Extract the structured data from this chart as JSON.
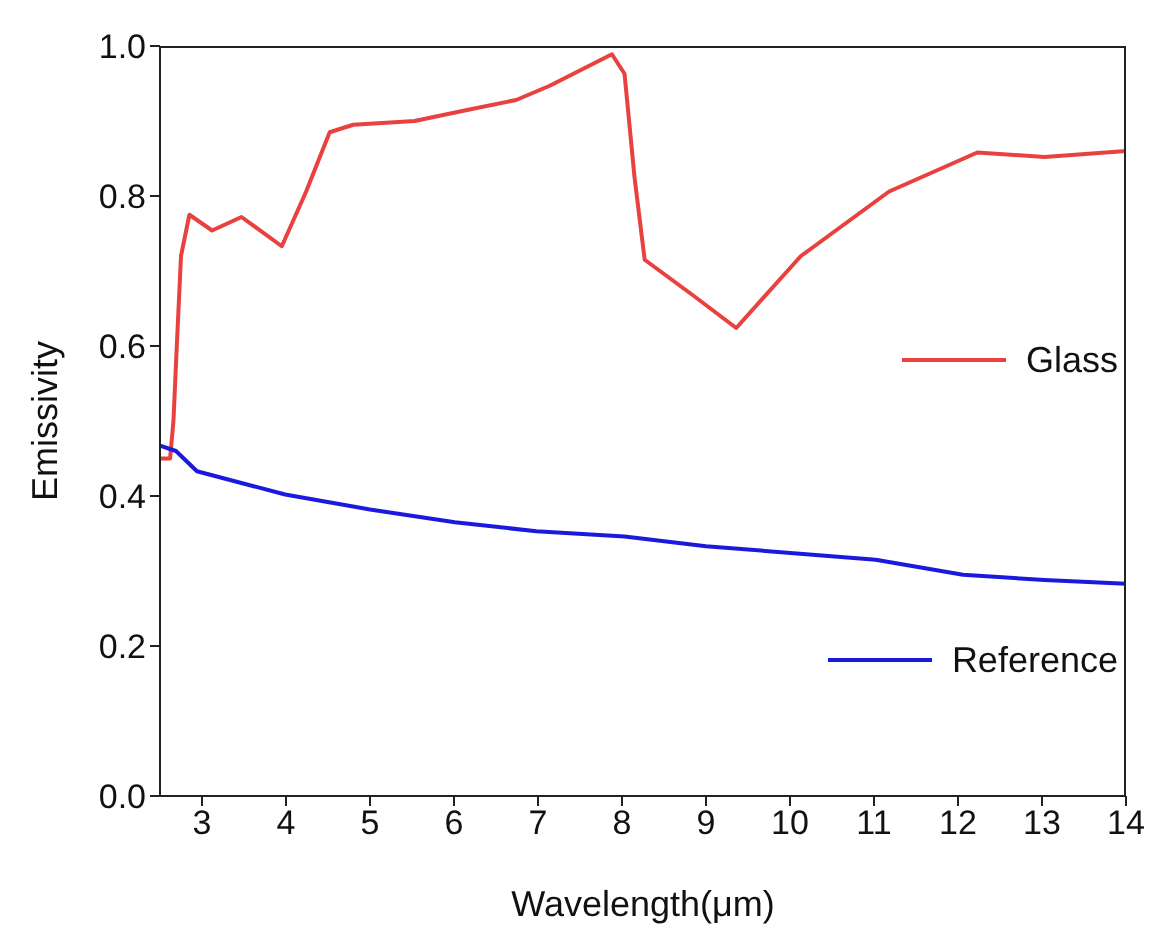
{
  "chart_data": {
    "type": "line",
    "xlabel": "Wavelength(μm)",
    "ylabel": "Emissivity",
    "xlim": [
      2.5,
      14
    ],
    "ylim": [
      0,
      1
    ],
    "xticks": [
      3,
      4,
      5,
      6,
      7,
      8,
      9,
      10,
      11,
      12,
      13,
      14
    ],
    "yticks": [
      {
        "value": 0,
        "label": "0.0"
      },
      {
        "value": 0.2,
        "label": "0.2"
      },
      {
        "value": 0.4,
        "label": "0.4"
      },
      {
        "value": 0.6,
        "label": "0.6"
      },
      {
        "value": 0.8,
        "label": "0.8"
      },
      {
        "value": 1,
        "label": "1.0"
      }
    ],
    "grid": false,
    "legend": "right",
    "marker": "none",
    "line_style": "solid",
    "series": [
      {
        "name": "Glass",
        "color": "#e8413f",
        "x": [
          2.5,
          2.62,
          2.66,
          2.7,
          2.75,
          2.85,
          3.12,
          3.47,
          3.95,
          4.24,
          4.52,
          4.8,
          5.53,
          6.17,
          6.74,
          7.14,
          7.88,
          8.03,
          8.15,
          8.27,
          8.84,
          9.36,
          10.13,
          11.18,
          12.23,
          13.03,
          14
        ],
        "values": [
          0.45,
          0.45,
          0.5,
          0.6,
          0.72,
          0.775,
          0.754,
          0.772,
          0.733,
          0.806,
          0.885,
          0.895,
          0.9,
          0.915,
          0.928,
          0.947,
          0.989,
          0.963,
          0.824,
          0.715,
          0.668,
          0.624,
          0.72,
          0.806,
          0.858,
          0.852,
          0.86
        ]
      },
      {
        "name": "Reference",
        "color": "#1a1adf",
        "x": [
          2.5,
          2.69,
          2.94,
          3.99,
          5.0,
          6.01,
          6.98,
          8.03,
          9.0,
          11.02,
          12.06,
          13.03,
          14
        ],
        "values": [
          0.467,
          0.46,
          0.433,
          0.402,
          0.382,
          0.365,
          0.353,
          0.346,
          0.333,
          0.315,
          0.295,
          0.288,
          0.283
        ]
      }
    ]
  }
}
